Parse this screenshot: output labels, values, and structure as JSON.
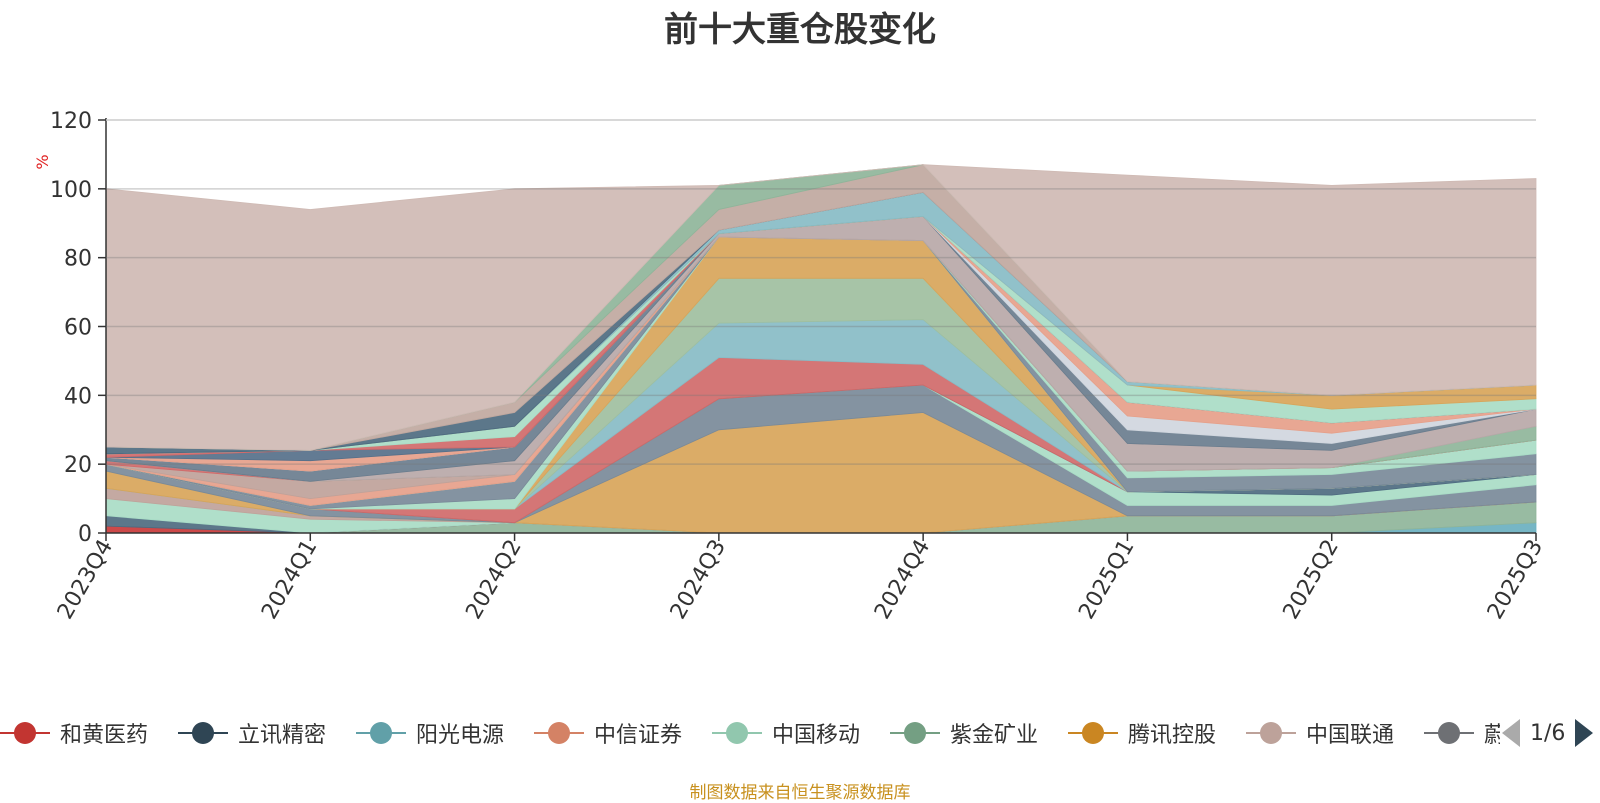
{
  "chart_data": {
    "type": "area",
    "stacked": true,
    "title": "前十大重仓股变化",
    "ylabel": "%",
    "xlabel": "",
    "ylim": [
      0,
      120
    ],
    "yticks": [
      0,
      20,
      40,
      60,
      80,
      100,
      120
    ],
    "categories": [
      "2023Q4",
      "2024Q1",
      "2024Q2",
      "2024Q3",
      "2024Q4",
      "2025Q1",
      "2025Q2",
      "2025Q3"
    ],
    "series": [
      {
        "name": "阳光电源",
        "color": "#6ab0c0",
        "values": [
          0,
          0,
          0,
          0,
          0,
          0,
          0,
          3
        ]
      },
      {
        "name": "紫金矿业",
        "color": "#8fb59a",
        "values": [
          0,
          0,
          3,
          0,
          0,
          5,
          5,
          6
        ]
      },
      {
        "name": "和黄医药",
        "color": "#c93a3a",
        "values": [
          2,
          0,
          0,
          0,
          0,
          0,
          0,
          0
        ]
      },
      {
        "name": "立讯精密",
        "color": "#4e6b80",
        "values": [
          3,
          0,
          0,
          0,
          0,
          0,
          0,
          0
        ]
      },
      {
        "name": "中国移动",
        "color": "#a9dcc6",
        "values": [
          5,
          4,
          0,
          0,
          0,
          0,
          0,
          0
        ]
      },
      {
        "name": "中国联通",
        "color": "#bfa29a",
        "values": [
          3,
          1,
          0,
          0,
          0,
          0,
          0,
          0
        ]
      },
      {
        "name": "紫金矿业",
        "color": "#8fb59a",
        "values": [
          0,
          0,
          0,
          0,
          0,
          0,
          0,
          0
        ]
      },
      {
        "name": "腾讯控股",
        "color": "#d8a55a",
        "values": [
          5,
          0,
          0,
          30,
          35,
          0,
          0,
          0
        ]
      },
      {
        "name": "立讯精密",
        "color": "#7a8a99",
        "values": [
          2,
          2,
          0,
          9,
          8,
          3,
          3,
          5
        ]
      },
      {
        "name": "中国移动",
        "color": "#a9dcc6",
        "values": [
          0,
          0,
          0,
          0,
          0,
          4,
          3,
          3
        ]
      },
      {
        "name": "立讯精密",
        "color": "#4e6b80",
        "values": [
          0,
          0,
          0,
          0,
          0,
          0,
          2,
          0
        ]
      },
      {
        "name": "和黄医药",
        "color": "#d06a6a",
        "values": [
          0,
          0,
          4,
          12,
          6,
          0,
          0,
          0
        ]
      },
      {
        "name": "阳光电源",
        "color": "#88bcc6",
        "values": [
          0,
          0,
          0,
          10,
          13,
          0,
          0,
          0
        ]
      },
      {
        "name": "紫金矿业",
        "color": "#9fbfa0",
        "values": [
          0,
          0,
          0,
          13,
          12,
          0,
          0,
          0
        ]
      },
      {
        "name": "腾讯控股",
        "color": "#d8a55a",
        "values": [
          0,
          0,
          0,
          12,
          11,
          0,
          0,
          0
        ]
      },
      {
        "name": "中国移动",
        "color": "#a9dcc6",
        "values": [
          0,
          0,
          3,
          0,
          0,
          0,
          0,
          0
        ]
      },
      {
        "name": "立讯精密",
        "color": "#7a8a99",
        "values": [
          0,
          1,
          5,
          0,
          0,
          4,
          4,
          6
        ]
      },
      {
        "name": "中国移动",
        "color": "#a9dcc6",
        "values": [
          0,
          0,
          0,
          0,
          0,
          2,
          2,
          4
        ]
      },
      {
        "name": "中信证券",
        "color": "#e6a08a",
        "values": [
          0,
          2,
          2,
          0,
          0,
          0,
          0,
          0
        ]
      },
      {
        "name": "中国联通",
        "color": "#bfa29a",
        "values": [
          0,
          5,
          0,
          0,
          0,
          0,
          0,
          0
        ]
      },
      {
        "name": "和黄医药",
        "color": "#d06a6a",
        "values": [
          1,
          0,
          0,
          0,
          0,
          0,
          0,
          0
        ]
      },
      {
        "name": "紫金矿业",
        "color": "#8fb59a",
        "values": [
          0,
          0,
          0,
          0,
          0,
          0,
          0,
          4
        ]
      },
      {
        "name": "中国联通",
        "color": "#b8a8a8",
        "values": [
          0,
          0,
          4,
          1,
          7,
          8,
          5,
          5
        ]
      },
      {
        "name": "立讯精密",
        "color": "#6a7d8e",
        "values": [
          1,
          3,
          4,
          0,
          0,
          4,
          2,
          0
        ]
      },
      {
        "name": "中国移动",
        "color": "#d0d6de",
        "values": [
          0,
          0,
          0,
          0,
          0,
          4,
          3,
          0
        ]
      },
      {
        "name": "中信证券",
        "color": "#e6a08a",
        "values": [
          0,
          3,
          0,
          0,
          0,
          4,
          3,
          0
        ]
      },
      {
        "name": "立讯精密",
        "color": "#56708a",
        "values": [
          0,
          3,
          0,
          0,
          0,
          0,
          0,
          0
        ]
      },
      {
        "name": "和黄医药",
        "color": "#d06a6a",
        "values": [
          1,
          0,
          3,
          0,
          0,
          0,
          0,
          0
        ]
      },
      {
        "name": "中国移动",
        "color": "#a9dcc6",
        "values": [
          0,
          0,
          3,
          0,
          0,
          5,
          4,
          3
        ]
      },
      {
        "name": "腾讯控股",
        "color": "#d8a55a",
        "values": [
          0,
          0,
          0,
          0,
          0,
          0,
          4,
          4
        ]
      },
      {
        "name": "阳光电源",
        "color": "#88bcc6",
        "values": [
          0,
          0,
          0,
          1,
          7,
          1,
          0,
          0
        ]
      },
      {
        "name": "立讯精密",
        "color": "#4e6b80",
        "values": [
          2,
          0,
          4,
          0,
          0,
          0,
          0,
          0
        ]
      },
      {
        "name": "中国联通",
        "color": "#c0a89f",
        "values": [
          0,
          0,
          3,
          6,
          8,
          0,
          0,
          0
        ]
      },
      {
        "name": "紫金矿业",
        "color": "#8fb59a",
        "values": [
          0,
          0,
          0,
          7,
          0,
          0,
          0,
          0
        ]
      },
      {
        "name": "中国联通",
        "color": "#cfbab4",
        "values": [
          75,
          70,
          62,
          0,
          0,
          60,
          61,
          60
        ]
      }
    ],
    "grid": true,
    "legend_position": "bottom"
  },
  "legend": {
    "items": [
      {
        "name": "和黄医药",
        "color": "#c23531"
      },
      {
        "name": "立讯精密",
        "color": "#2f4554"
      },
      {
        "name": "阳光电源",
        "color": "#61a0a8"
      },
      {
        "name": "中信证券",
        "color": "#d48265"
      },
      {
        "name": "中国移动",
        "color": "#91c7ae"
      },
      {
        "name": "紫金矿业",
        "color": "#749f83"
      },
      {
        "name": "腾讯控股",
        "color": "#ca8622"
      },
      {
        "name": "中国联通",
        "color": "#bda29a"
      },
      {
        "name": "蔚",
        "color": "#6e7074"
      }
    ],
    "page_text": "1/6"
  },
  "source": "制图数据来自恒生聚源数据库"
}
